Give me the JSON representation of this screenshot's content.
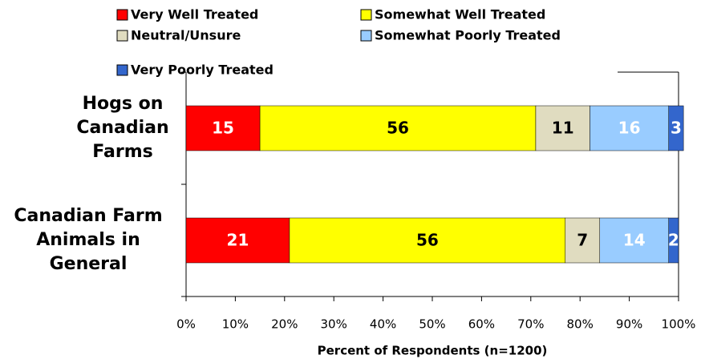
{
  "chart_data": {
    "type": "stacked-bar-horizontal",
    "categories": [
      "Hogs on\nCanadian\nFarms",
      "Canadian Farm\nAnimals in\nGeneral"
    ],
    "series": [
      {
        "name": "Very Well Treated",
        "color": "#ff0000",
        "values": [
          15,
          21
        ]
      },
      {
        "name": "Somewhat Well Treated",
        "color": "#ffff00",
        "values": [
          56,
          56
        ]
      },
      {
        "name": "Neutral/Unsure",
        "color": "#e0dcc0",
        "values": [
          11,
          7
        ]
      },
      {
        "name": "Somewhat Poorly Treated",
        "color": "#99ccff",
        "values": [
          16,
          14
        ]
      },
      {
        "name": "Very Poorly Treated",
        "color": "#3366cc",
        "values": [
          3,
          2
        ]
      }
    ],
    "xlabel": "Percent of Respondents (n=1200)",
    "xlim": [
      0,
      100
    ],
    "xticks": [
      {
        "value": 0,
        "label": "0%"
      },
      {
        "value": 10,
        "label": "10%"
      },
      {
        "value": 20,
        "label": "20%"
      },
      {
        "value": 30,
        "label": "30%"
      },
      {
        "value": 40,
        "label": "40%"
      },
      {
        "value": 50,
        "label": "50%"
      },
      {
        "value": 60,
        "label": "60%"
      },
      {
        "value": 70,
        "label": "70%"
      },
      {
        "value": 80,
        "label": "80%"
      },
      {
        "value": 90,
        "label": "90%"
      },
      {
        "value": 100,
        "label": "100%"
      }
    ],
    "legend": "top"
  }
}
